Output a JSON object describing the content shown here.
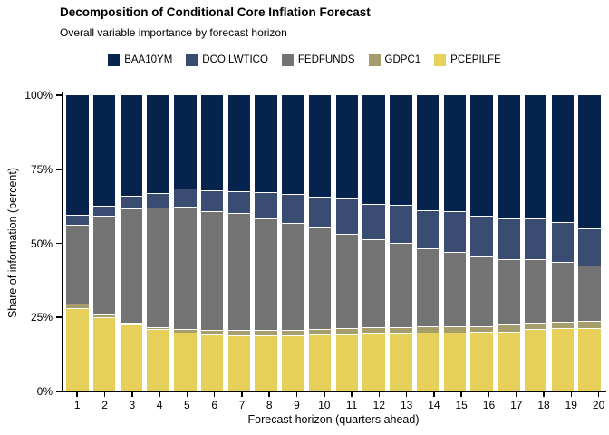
{
  "chart_data": {
    "type": "bar",
    "stacked": true,
    "stack_note": "series listed top-to-bottom as drawn in each bar; values are percent shares summing to 100",
    "title": "Decomposition of Conditional Core Inflation Forecast",
    "subtitle": "Overall variable importance by forecast horizon",
    "xlabel": "Forecast horizon (quarters ahead)",
    "ylabel": "Share of information (percent)",
    "ylim": [
      0,
      100
    ],
    "y_ticks": [
      {
        "label": "0%",
        "value": 0
      },
      {
        "label": "25%",
        "value": 25
      },
      {
        "label": "50%",
        "value": 50
      },
      {
        "label": "75%",
        "value": 75
      },
      {
        "label": "100%",
        "value": 100
      }
    ],
    "grid": false,
    "legend_position": "top-center",
    "segment_divider_color": "#ffffff",
    "axis_color": "#000000",
    "background_color": "#ffffff",
    "categories": [
      "1",
      "2",
      "3",
      "4",
      "5",
      "6",
      "7",
      "8",
      "9",
      "10",
      "11",
      "12",
      "13",
      "14",
      "15",
      "16",
      "17",
      "18",
      "19",
      "20"
    ],
    "series": [
      {
        "name": "BAA10YM",
        "color": "#05234D",
        "values": [
          40.4,
          37.2,
          33.8,
          32.9,
          31.5,
          32.0,
          32.5,
          32.8,
          33.2,
          34.4,
          34.8,
          36.6,
          37.1,
          38.7,
          39.0,
          40.7,
          41.7,
          41.5,
          42.7,
          45.0
        ]
      },
      {
        "name": "DCOILWTICO",
        "color": "#3B4C72",
        "values": [
          3.2,
          3.5,
          4.3,
          5.0,
          6.2,
          7.0,
          7.3,
          8.9,
          9.8,
          10.4,
          12.0,
          12.1,
          12.9,
          13.1,
          13.8,
          13.7,
          13.8,
          13.7,
          13.6,
          12.6
        ]
      },
      {
        "name": "FEDFUNDS",
        "color": "#737373",
        "values": [
          26.8,
          33.3,
          38.7,
          40.3,
          41.1,
          40.3,
          39.4,
          37.5,
          36.2,
          34.2,
          31.9,
          29.7,
          28.2,
          26.1,
          25.2,
          23.5,
          22.0,
          21.6,
          20.2,
          18.6
        ]
      },
      {
        "name": "GDPC1",
        "color": "#A59E6C",
        "values": [
          1.6,
          1.0,
          0.7,
          0.8,
          1.2,
          1.5,
          1.8,
          1.8,
          1.8,
          1.8,
          2.0,
          2.1,
          2.2,
          2.3,
          2.0,
          2.0,
          2.2,
          2.2,
          2.2,
          2.3
        ]
      },
      {
        "name": "PCEPILFE",
        "color": "#E7D05A",
        "values": [
          28.0,
          25.0,
          22.5,
          21.0,
          20.0,
          19.2,
          19.0,
          19.0,
          19.0,
          19.2,
          19.3,
          19.5,
          19.6,
          19.8,
          20.0,
          20.1,
          20.3,
          21.0,
          21.3,
          21.5
        ]
      }
    ]
  }
}
